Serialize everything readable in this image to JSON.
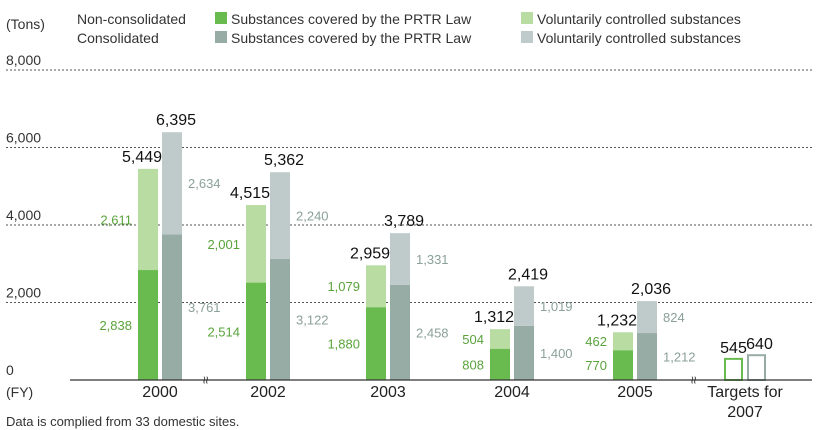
{
  "chart_data": {
    "type": "bar",
    "stacked": true,
    "unit_label": "(Tons)",
    "x_label": "(FY)",
    "ylim": [
      0,
      8000
    ],
    "yticks": [
      0,
      2000,
      4000,
      6000,
      8000
    ],
    "ytick_labels": [
      "0",
      "2,000",
      "4,000",
      "6,000",
      "8,000"
    ],
    "grid": "horizontal dotted",
    "legend_position": "top",
    "legend": {
      "row_labels": [
        "Non-consolidated",
        "Consolidated"
      ],
      "prtr_label": "Substances covered by the PRTR Law",
      "voluntary_label": "Voluntarily controlled substances"
    },
    "colors": {
      "nc_prtr": "#6abb4f",
      "nc_vol": "#b9dca2",
      "c_prtr": "#98aca6",
      "c_vol": "#bfcbcb",
      "nc_label": "#5aa33c",
      "c_label": "#8ba09a",
      "target_outline": "#6abb4f",
      "target_outline_c": "#98aca6"
    },
    "categories": [
      "2000",
      "2002",
      "2003",
      "2004",
      "2005"
    ],
    "series": [
      {
        "group": "Non-consolidated",
        "part": "PRTR",
        "values": [
          2838,
          2514,
          1880,
          808,
          770
        ],
        "labels": [
          "2,838",
          "2,514",
          "1,880",
          "808",
          "770"
        ]
      },
      {
        "group": "Non-consolidated",
        "part": "Voluntary",
        "values": [
          2611,
          2001,
          1079,
          504,
          462
        ],
        "labels": [
          "2,611",
          "2,001",
          "1,079",
          "504",
          "462"
        ]
      },
      {
        "group": "Consolidated",
        "part": "PRTR",
        "values": [
          3761,
          3122,
          2458,
          1400,
          1212
        ],
        "labels": [
          "3,761",
          "3,122",
          "2,458",
          "1,400",
          "1,212"
        ]
      },
      {
        "group": "Consolidated",
        "part": "Voluntary",
        "values": [
          2634,
          2240,
          1331,
          1019,
          824
        ],
        "labels": [
          "2,634",
          "2,240",
          "1,331",
          "1,019",
          "824"
        ]
      }
    ],
    "totals": {
      "non_consolidated": [
        5449,
        4515,
        2959,
        1312,
        1232
      ],
      "non_consolidated_labels": [
        "5,449",
        "4,515",
        "2,959",
        "1,312",
        "1,232"
      ],
      "consolidated": [
        6395,
        5362,
        3789,
        2419,
        2036
      ],
      "consolidated_labels": [
        "6,395",
        "5,362",
        "3,789",
        "2,419",
        "2,036"
      ]
    },
    "targets": {
      "label_line1": "Targets for",
      "label_line2": "2007",
      "non_consolidated": 545,
      "non_consolidated_label": "545",
      "consolidated": 640,
      "consolidated_label": "640"
    },
    "axis_break_marks": [
      "≈",
      "≈"
    ],
    "note": "Data is complied from 33 domestic sites."
  }
}
